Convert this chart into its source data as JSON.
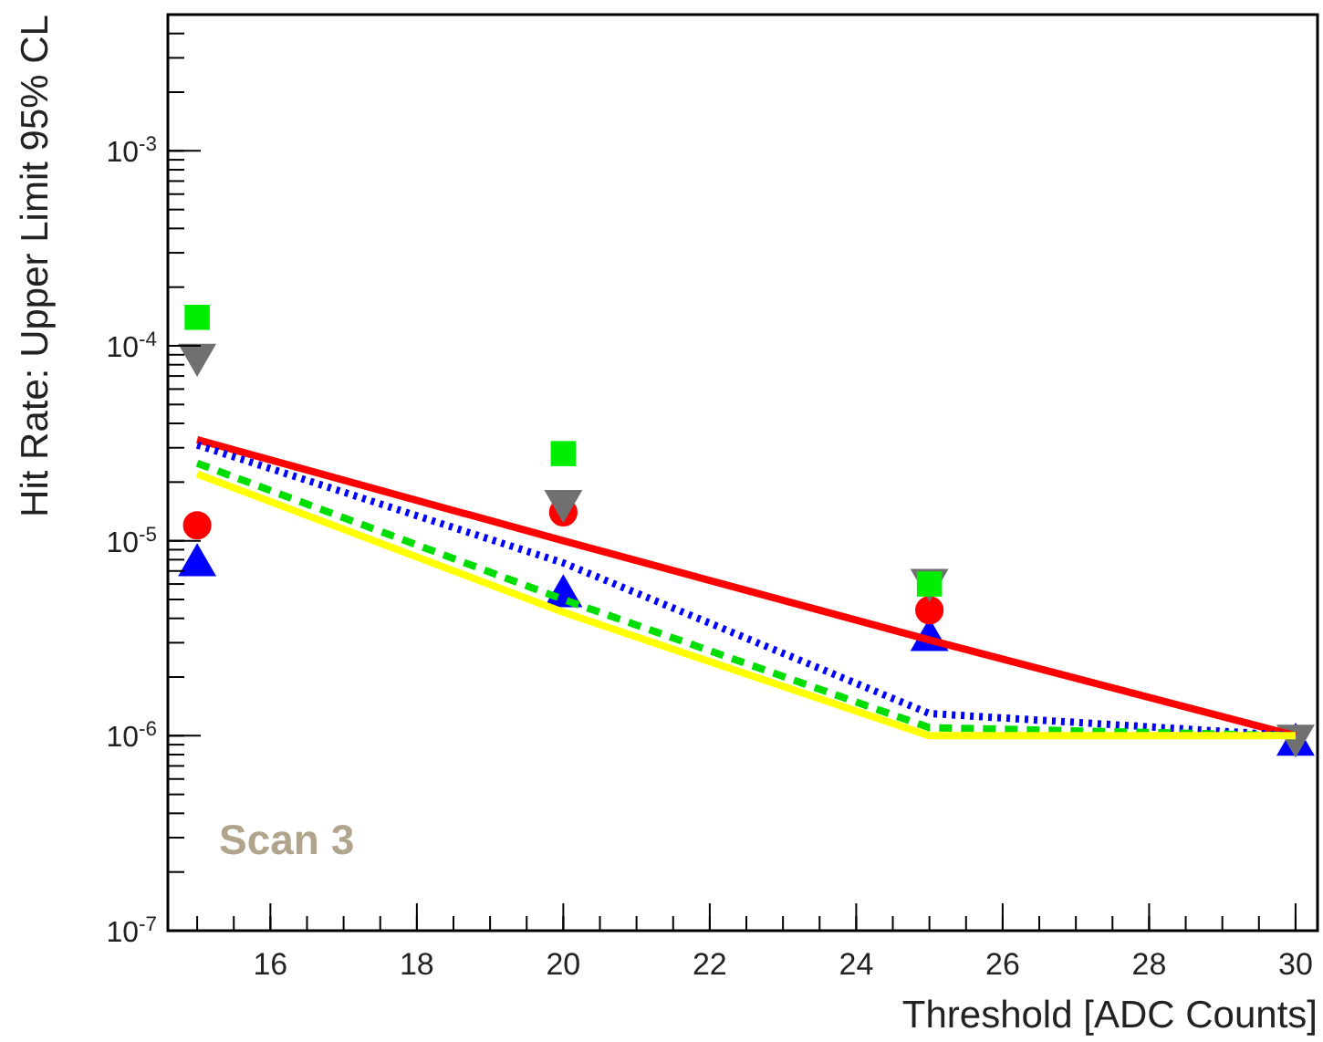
{
  "chart_data": {
    "type": "scatter",
    "xlabel": "Threshold [ADC Counts]",
    "ylabel": "Hit Rate: Upper Limit 95% CL",
    "x": [
      15,
      20,
      25,
      30
    ],
    "series": [
      {
        "type": "line",
        "color": "#ff0000",
        "line_style": "solid",
        "marker": "none",
        "values": [
          3.3e-05,
          1e-05,
          3.1e-06,
          1e-06
        ]
      },
      {
        "type": "line",
        "color": "#0000ff",
        "line_style": "dotted",
        "marker": "none",
        "values": [
          3.1e-05,
          7.7e-06,
          1.3e-06,
          1e-06
        ]
      },
      {
        "type": "line",
        "color": "#00dd00",
        "line_style": "dashed",
        "marker": "none",
        "values": [
          2.5e-05,
          5e-06,
          1.1e-06,
          1e-06
        ]
      },
      {
        "type": "line",
        "color": "#ffff00",
        "line_style": "solid",
        "marker": "none",
        "values": [
          2.2e-05,
          4.3e-06,
          1e-06,
          1e-06
        ]
      },
      {
        "color": "#00ee00",
        "marker": "square",
        "values": [
          0.00014,
          2.8e-05,
          6e-06,
          null
        ]
      },
      {
        "color": "#707070",
        "marker": "triangle-down",
        "values": [
          9e-05,
          1.6e-05,
          6.3e-06,
          1e-06
        ]
      },
      {
        "color": "#ff0000",
        "marker": "circle",
        "values": [
          1.2e-05,
          1.4e-05,
          4.4e-06,
          null
        ]
      },
      {
        "color": "#0000ff",
        "marker": "triangle",
        "values": [
          7.5e-06,
          5.2e-06,
          3.1e-06,
          9e-07
        ]
      }
    ],
    "log": "y",
    "xlim": [
      14.6,
      30.3
    ],
    "xticks": [
      16,
      18,
      20,
      22,
      24,
      26,
      28,
      30
    ],
    "ylim": [
      1e-07,
      0.005
    ],
    "yticks": [
      {
        "value": 1e-07,
        "label": "10$^{-7}$"
      },
      {
        "value": 1e-06,
        "label": "10$^{-6}$"
      },
      {
        "value": 1e-05,
        "label": "10$^{-5}$"
      },
      {
        "value": 0.0001,
        "label": "10$^{-4}$"
      },
      {
        "value": 0.001,
        "label": "10$^{-3}$"
      }
    ],
    "annotations": [
      "Scan 3"
    ],
    "grid": false
  }
}
